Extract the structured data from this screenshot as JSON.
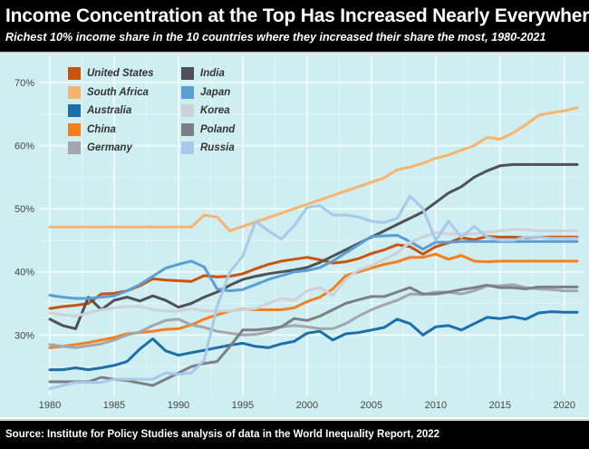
{
  "header": {
    "title": "Income Concentration at the Top Has Increased Nearly Everywhere",
    "subtitle": "Richest 10% income share in the 10 countries where they increased their share the most, 1980-2021"
  },
  "footer": {
    "source": "Source: Institute for Policy Studies analysis of data in the World Inequality Report, 2022"
  },
  "chart_data": {
    "type": "line",
    "title": "Income Concentration at the Top Has Increased Nearly Everywhere",
    "subtitle": "Richest 10% income share in the 10 countries where they increased their share the most, 1980-2021",
    "xlabel": "",
    "ylabel": "",
    "xlim": [
      1980,
      2021
    ],
    "ylim": [
      21,
      73
    ],
    "grid": true,
    "legend_position": "top-left",
    "x_ticks": [
      1980,
      1985,
      1990,
      1995,
      2000,
      2005,
      2010,
      2015,
      2020
    ],
    "x_tick_labels": [
      "1980",
      "1985",
      "1990",
      "1995",
      "2000",
      "2005",
      "2010",
      "2015",
      "2020"
    ],
    "y_ticks": [
      30,
      40,
      50,
      60,
      70
    ],
    "y_tick_labels": [
      "30%",
      "40%",
      "50%",
      "60%",
      "70%"
    ],
    "x": [
      1980,
      1981,
      1982,
      1983,
      1984,
      1985,
      1986,
      1987,
      1988,
      1989,
      1990,
      1991,
      1992,
      1993,
      1994,
      1995,
      1996,
      1997,
      1998,
      1999,
      2000,
      2001,
      2002,
      2003,
      2004,
      2005,
      2006,
      2007,
      2008,
      2009,
      2010,
      2011,
      2012,
      2013,
      2014,
      2015,
      2016,
      2017,
      2018,
      2019,
      2020,
      2021
    ],
    "series": [
      {
        "name": "United States",
        "color": "#c8540f",
        "values": [
          34.2,
          34.5,
          34.7,
          35.0,
          36.5,
          36.6,
          37.0,
          37.8,
          38.9,
          38.7,
          38.6,
          38.5,
          39.4,
          39.2,
          39.3,
          39.7,
          40.5,
          41.2,
          41.7,
          42.0,
          42.3,
          41.9,
          41.4,
          41.6,
          42.1,
          42.9,
          43.5,
          44.3,
          44.0,
          42.8,
          44.0,
          44.6,
          45.4,
          45.1,
          45.6,
          45.5,
          45.5,
          45.4,
          45.5,
          45.5,
          45.5,
          45.5
        ]
      },
      {
        "name": "South Africa",
        "color": "#f7b46e",
        "values": [
          47.1,
          47.1,
          47.1,
          47.1,
          47.1,
          47.1,
          47.1,
          47.1,
          47.1,
          47.1,
          47.1,
          47.1,
          49.0,
          48.7,
          46.5,
          47.2,
          47.9,
          48.6,
          49.3,
          50.0,
          50.7,
          51.4,
          52.1,
          52.8,
          53.5,
          54.2,
          54.9,
          56.2,
          56.6,
          57.2,
          58.0,
          58.5,
          59.3,
          60.0,
          61.3,
          61.0,
          62.0,
          63.3,
          64.8,
          65.2,
          65.5,
          66.0
        ]
      },
      {
        "name": "Australia",
        "color": "#1b6fab",
        "values": [
          24.5,
          24.5,
          24.8,
          24.5,
          24.8,
          25.2,
          25.8,
          27.8,
          29.4,
          27.5,
          26.8,
          27.2,
          27.6,
          28.0,
          28.4,
          28.7,
          28.2,
          28.0,
          28.6,
          29.0,
          30.3,
          30.6,
          29.2,
          30.2,
          30.4,
          30.8,
          31.2,
          32.5,
          31.8,
          30.0,
          31.3,
          31.5,
          30.8,
          31.8,
          32.8,
          32.6,
          32.9,
          32.5,
          33.5,
          33.7,
          33.6,
          33.6
        ]
      },
      {
        "name": "China",
        "color": "#f57f1f",
        "values": [
          28.0,
          28.2,
          28.5,
          28.8,
          29.2,
          29.6,
          30.2,
          30.4,
          30.6,
          30.9,
          31.0,
          31.6,
          32.5,
          33.2,
          33.8,
          34.1,
          34.0,
          34.0,
          34.0,
          34.3,
          35.3,
          36.0,
          37.3,
          39.4,
          40.0,
          40.6,
          41.2,
          41.6,
          42.3,
          42.3,
          42.8,
          42.0,
          42.6,
          41.7,
          41.6,
          41.7,
          41.7,
          41.7,
          41.7,
          41.7,
          41.7,
          41.7
        ]
      },
      {
        "name": "Germany",
        "color": "#a3a6ad",
        "values": [
          28.5,
          28.2,
          28.0,
          28.3,
          28.6,
          29.2,
          30.0,
          30.5,
          31.5,
          32.3,
          32.5,
          31.6,
          31.2,
          30.6,
          30.3,
          30.0,
          30.1,
          30.5,
          31.3,
          31.5,
          31.3,
          31.0,
          31.0,
          31.8,
          33.0,
          34.0,
          34.8,
          35.5,
          36.5,
          36.4,
          36.8,
          36.8,
          36.5,
          37.0,
          37.8,
          37.8,
          38.0,
          37.5,
          37.3,
          37.2,
          37.0,
          37.0
        ]
      },
      {
        "name": "India",
        "color": "#4e5158",
        "values": [
          32.5,
          31.5,
          31.0,
          36.0,
          34.0,
          35.5,
          36.0,
          35.4,
          36.2,
          35.5,
          34.4,
          35.0,
          36.0,
          36.8,
          37.9,
          38.8,
          39.3,
          39.7,
          40.0,
          40.3,
          40.7,
          41.5,
          42.5,
          43.5,
          44.5,
          45.5,
          46.5,
          47.5,
          48.5,
          49.5,
          51.0,
          52.5,
          53.5,
          55.0,
          56.0,
          56.8,
          57.0,
          57.0,
          57.0,
          57.0,
          57.0,
          57.0
        ]
      },
      {
        "name": "Japan",
        "color": "#5a9ed6",
        "values": [
          36.3,
          36.0,
          35.8,
          35.8,
          36.0,
          36.2,
          37.0,
          38.0,
          39.3,
          40.6,
          41.2,
          41.7,
          40.8,
          37.3,
          37.0,
          37.2,
          38.0,
          38.8,
          39.4,
          40.0,
          40.2,
          40.7,
          41.7,
          43.0,
          44.3,
          45.6,
          45.7,
          45.8,
          44.8,
          43.6,
          44.7,
          44.7,
          44.8,
          44.8,
          44.8,
          44.8,
          44.8,
          44.8,
          44.8,
          44.8,
          44.8,
          44.8
        ]
      },
      {
        "name": "Korea",
        "color": "#cdd1d8",
        "values": [
          33.5,
          33.2,
          33.0,
          33.5,
          34.0,
          34.3,
          34.5,
          34.5,
          34.0,
          33.8,
          33.8,
          34.2,
          33.8,
          33.8,
          33.8,
          34.0,
          34.2,
          35.0,
          35.8,
          35.5,
          37.0,
          37.5,
          36.3,
          38.8,
          40.3,
          41.0,
          42.0,
          43.0,
          44.7,
          45.5,
          46.2,
          46.0,
          46.0,
          46.0,
          46.3,
          46.5,
          46.7,
          46.7,
          46.5,
          46.5,
          46.5,
          46.5
        ]
      },
      {
        "name": "Poland",
        "color": "#7c7f86",
        "values": [
          22.6,
          22.6,
          22.6,
          22.6,
          23.3,
          23.0,
          22.8,
          22.4,
          22.0,
          23.0,
          24.0,
          25.0,
          25.5,
          25.8,
          28.2,
          30.8,
          30.8,
          31.0,
          31.3,
          32.6,
          32.3,
          33.0,
          34.0,
          35.0,
          35.6,
          36.1,
          36.1,
          36.8,
          37.5,
          36.5,
          36.5,
          36.8,
          37.2,
          37.5,
          37.9,
          37.5,
          37.5,
          37.3,
          37.6,
          37.6,
          37.6,
          37.6
        ]
      },
      {
        "name": "Russia",
        "color": "#a7c9ea",
        "values": [
          21.5,
          22.0,
          22.5,
          22.5,
          22.5,
          23.0,
          23.0,
          23.0,
          23.0,
          24.0,
          23.8,
          24.0,
          26.0,
          34.5,
          40.0,
          42.5,
          48.0,
          46.5,
          45.2,
          47.3,
          50.2,
          50.5,
          49.0,
          49.0,
          48.7,
          48.0,
          47.8,
          48.5,
          52.0,
          50.0,
          45.0,
          48.0,
          45.5,
          47.2,
          45.5,
          45.0,
          45.0,
          45.5,
          45.5,
          45.3,
          45.3,
          45.3
        ]
      }
    ]
  }
}
